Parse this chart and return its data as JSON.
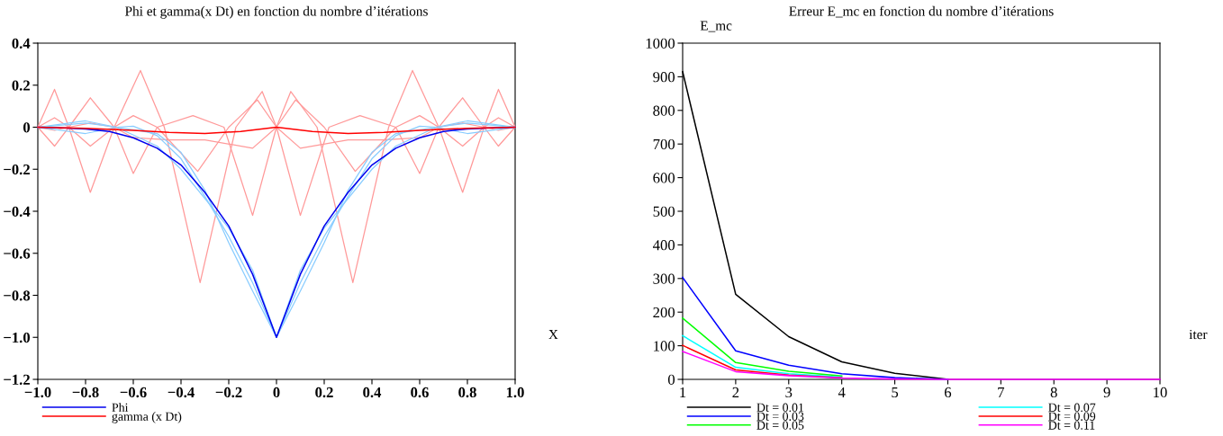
{
  "chart_data": [
    {
      "type": "line",
      "title": "Phi et gamma(x Dt) en fonction du nombre d’itérations",
      "xlabel": "X",
      "legend": "bottom",
      "grid": false,
      "xlim": [
        -1.0,
        1.0
      ],
      "xticks": [
        {
          "value": -1.0,
          "label": "−1.0"
        },
        {
          "value": -0.8,
          "label": "−0.8"
        },
        {
          "value": -0.6,
          "label": "−0.6"
        },
        {
          "value": -0.4,
          "label": "−0.4"
        },
        {
          "value": -0.2,
          "label": "−0.2"
        },
        0,
        {
          "value": 0.2,
          "label": "0.2"
        },
        {
          "value": 0.4,
          "label": "0.4"
        },
        {
          "value": 0.6,
          "label": "0.6"
        },
        {
          "value": 0.8,
          "label": "0.8"
        },
        {
          "value": 1.0,
          "label": "1.0"
        }
      ],
      "ylim": [
        -1.2,
        0.4
      ],
      "yticks": [
        {
          "value": -1.2,
          "label": "−1.2"
        },
        {
          "value": -1.0,
          "label": "−1.0"
        },
        {
          "value": -0.8,
          "label": "−0.8"
        },
        {
          "value": -0.6,
          "label": "−0.6"
        },
        {
          "value": -0.4,
          "label": "−0.4"
        },
        {
          "value": -0.2,
          "label": "−0.2"
        },
        0,
        0.2,
        0.4
      ],
      "series": [
        {
          "color": "#ff9999",
          "x": [
            -1.0,
            -0.93,
            -0.87,
            -0.78,
            -0.68,
            -0.57,
            -0.47,
            -0.32,
            -0.17,
            -0.06,
            0.0,
            0.06,
            0.17,
            0.32,
            0.47,
            0.57,
            0.68,
            0.78,
            0.87,
            0.93,
            1.0
          ],
          "values": [
            0,
            0.18,
            0,
            -0.31,
            0,
            0.27,
            0,
            -0.74,
            0,
            0.17,
            0,
            0.17,
            0,
            -0.74,
            0,
            0.27,
            0,
            -0.31,
            0,
            0.18,
            0
          ]
        },
        {
          "color": "#ff9999",
          "x": [
            -1.0,
            -0.93,
            -0.87,
            -0.78,
            -0.68,
            -0.6,
            -0.5,
            -0.35,
            -0.22,
            -0.1,
            0.0,
            0.1,
            0.22,
            0.35,
            0.5,
            0.6,
            0.68,
            0.78,
            0.87,
            0.93,
            1.0
          ],
          "values": [
            0,
            -0.09,
            0,
            0.14,
            0,
            -0.22,
            0,
            0.055,
            0,
            -0.42,
            0,
            -0.42,
            0,
            0.055,
            0,
            -0.22,
            0,
            0.14,
            0,
            -0.09,
            0
          ]
        },
        {
          "color": "#ff9999",
          "x": [
            -1.0,
            -0.93,
            -0.87,
            -0.78,
            -0.68,
            -0.6,
            -0.5,
            -0.33,
            -0.2,
            -0.08,
            0.0,
            0.08,
            0.2,
            0.33,
            0.5,
            0.6,
            0.68,
            0.78,
            0.87,
            0.93,
            1.0
          ],
          "values": [
            0,
            0.045,
            0,
            -0.09,
            0,
            0.055,
            0,
            -0.21,
            0,
            0.13,
            0,
            0.13,
            0,
            -0.21,
            0,
            0.055,
            0,
            -0.09,
            0,
            0.045,
            0
          ]
        },
        {
          "color": "#ff9999",
          "x": [
            -1.0,
            -0.93,
            -0.87,
            -0.78,
            -0.68,
            -0.6,
            -0.45,
            -0.3,
            -0.1,
            0.0,
            0.1,
            0.3,
            0.45,
            0.6,
            0.68,
            0.78,
            0.87,
            0.93,
            1.0
          ],
          "values": [
            0,
            -0.015,
            0,
            0.02,
            0,
            -0.05,
            -0.06,
            -0.06,
            -0.1,
            0,
            -0.1,
            -0.06,
            -0.06,
            -0.05,
            0,
            0.02,
            0,
            -0.015,
            0
          ]
        },
        {
          "color": "#88ccff",
          "x": [
            -1.0,
            -0.8,
            -0.67,
            -0.5,
            -0.4,
            -0.3,
            -0.2,
            -0.1,
            0.0,
            0.1,
            0.2,
            0.3,
            0.4,
            0.5,
            0.67,
            0.8,
            1.0
          ],
          "values": [
            0,
            0.03,
            0,
            -0.03,
            -0.12,
            -0.3,
            -0.55,
            -0.78,
            -1.0,
            -0.78,
            -0.55,
            -0.3,
            -0.12,
            -0.03,
            0,
            0.03,
            0
          ]
        },
        {
          "color": "#88ccff",
          "x": [
            -1.0,
            -0.8,
            -0.67,
            -0.6,
            -0.5,
            -0.4,
            -0.3,
            -0.2,
            -0.1,
            0.0,
            0.1,
            0.2,
            0.3,
            0.4,
            0.5,
            0.6,
            0.67,
            0.8,
            1.0
          ],
          "values": [
            0,
            -0.03,
            0,
            0.005,
            -0.04,
            -0.15,
            -0.33,
            -0.52,
            -0.74,
            -1.0,
            -0.74,
            -0.52,
            -0.33,
            -0.15,
            -0.04,
            0.005,
            0,
            -0.03,
            0
          ]
        },
        {
          "color": "#88ccff",
          "x": [
            -1.0,
            -0.8,
            -0.67,
            -0.5,
            -0.4,
            -0.3,
            -0.2,
            -0.1,
            0.0,
            0.1,
            0.2,
            0.3,
            0.4,
            0.5,
            0.67,
            0.8,
            1.0
          ],
          "values": [
            0,
            0.02,
            0,
            -0.09,
            -0.2,
            -0.34,
            -0.48,
            -0.68,
            -1.0,
            -0.68,
            -0.48,
            -0.34,
            -0.2,
            -0.09,
            0,
            0.02,
            0
          ]
        },
        {
          "name": "Phi",
          "color": "#0000ee",
          "x": [
            -1.0,
            -0.9,
            -0.8,
            -0.7,
            -0.6,
            -0.5,
            -0.4,
            -0.3,
            -0.2,
            -0.1,
            0.0,
            0.1,
            0.2,
            0.3,
            0.4,
            0.5,
            0.6,
            0.7,
            0.8,
            0.9,
            1.0
          ],
          "values": [
            0,
            -0.003,
            -0.008,
            -0.02,
            -0.05,
            -0.1,
            -0.18,
            -0.31,
            -0.47,
            -0.7,
            -1.0,
            -0.7,
            -0.47,
            -0.31,
            -0.18,
            -0.1,
            -0.05,
            -0.02,
            -0.008,
            -0.003,
            0
          ]
        },
        {
          "name": "gamma (x Dt)",
          "color": "#ff0000",
          "x": [
            -1.0,
            -0.8,
            -0.6,
            -0.45,
            -0.3,
            -0.15,
            0.0,
            0.15,
            0.3,
            0.45,
            0.6,
            0.8,
            1.0
          ],
          "values": [
            0,
            -0.005,
            -0.015,
            -0.025,
            -0.03,
            -0.02,
            0,
            -0.02,
            -0.03,
            -0.025,
            -0.015,
            -0.005,
            0
          ]
        }
      ]
    },
    {
      "type": "line",
      "title": "Erreur E_mc en fonction du nombre d’itérations",
      "xlabel": "iter",
      "ylabel": "E_mc",
      "legend": "bottom",
      "grid": false,
      "x": [
        1,
        2,
        3,
        4,
        5,
        6,
        7,
        8,
        9,
        10
      ],
      "xlim": [
        1,
        10
      ],
      "xticks": [
        1,
        2,
        3,
        4,
        5,
        6,
        7,
        8,
        9,
        10
      ],
      "ylim": [
        0,
        1000
      ],
      "yticks": [
        0,
        100,
        200,
        300,
        400,
        500,
        600,
        700,
        800,
        900,
        1000
      ],
      "series": [
        {
          "name": "Dt = 0.01",
          "color": "#000000",
          "values": [
            915,
            253,
            127,
            52,
            18,
            0,
            null,
            null,
            null,
            null
          ]
        },
        {
          "name": "Dt = 0.03",
          "color": "#0000ff",
          "values": [
            303,
            85,
            42,
            17,
            5,
            0,
            null,
            null,
            null,
            null
          ]
        },
        {
          "name": "Dt = 0.05",
          "color": "#00ff00",
          "values": [
            182,
            50,
            24,
            10,
            null,
            null,
            null,
            null,
            null,
            null
          ]
        },
        {
          "name": "Dt = 0.07",
          "color": "#00ffff",
          "values": [
            130,
            36,
            17,
            7,
            null,
            null,
            null,
            null,
            null,
            null
          ]
        },
        {
          "name": "Dt = 0.09",
          "color": "#ff0000",
          "values": [
            101,
            28,
            13,
            5,
            null,
            null,
            null,
            null,
            null,
            null
          ]
        },
        {
          "name": "Dt = 0.11",
          "color": "#ff00ff",
          "values": [
            83,
            23,
            11,
            4,
            1,
            0,
            0,
            0,
            0,
            0
          ]
        }
      ]
    }
  ]
}
